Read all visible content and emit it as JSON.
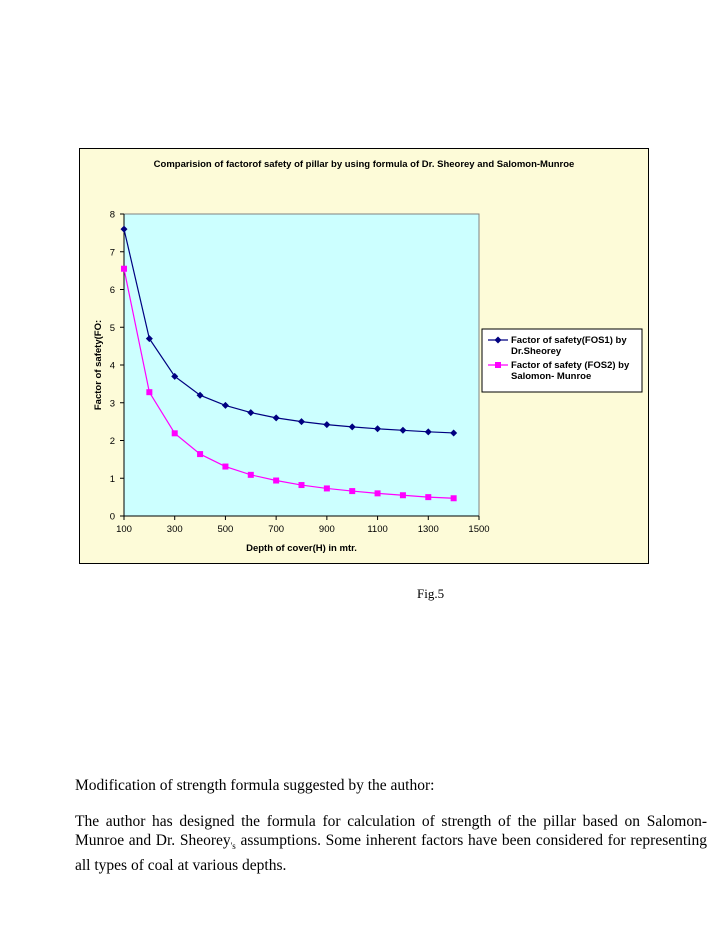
{
  "chart_data": {
    "type": "line",
    "title": "Comparision of factorof safety of pillar by using formula of Dr. Sheorey and Salomon-Munroe",
    "xlabel": "Depth of cover(H) in mtr.",
    "ylabel": "Factor of safety(FO:",
    "xlim": [
      100,
      1500
    ],
    "ylim": [
      0,
      8
    ],
    "x_ticks": [
      "100",
      "300",
      "500",
      "700",
      "900",
      "1100",
      "1300",
      "1500"
    ],
    "y_ticks": [
      "0",
      "1",
      "2",
      "3",
      "4",
      "5",
      "6",
      "7",
      "8"
    ],
    "grid": false,
    "legend_position": "right",
    "plot_background": "#ccffff",
    "chart_background": "#fdfbd8",
    "x": [
      100,
      200,
      300,
      400,
      500,
      600,
      700,
      800,
      900,
      1000,
      1100,
      1200,
      1300,
      1400
    ],
    "series": [
      {
        "name": "Factor of safety(FOS1) by Dr.Sheorey",
        "legend_lines": [
          "Factor of safety(FOS1) by",
          "Dr.Sheorey"
        ],
        "color": "#000080",
        "marker": "diamond",
        "values": [
          7.6,
          4.7,
          3.7,
          3.2,
          2.93,
          2.74,
          2.6,
          2.5,
          2.42,
          2.36,
          2.31,
          2.27,
          2.23,
          2.2
        ]
      },
      {
        "name": "Factor of safety (FOS2) by Salomon- Munroe",
        "legend_lines": [
          "Factor of safety (FOS2) by",
          "Salomon- Munroe"
        ],
        "color": "#ff00ff",
        "marker": "square",
        "values": [
          6.55,
          3.28,
          2.19,
          1.64,
          1.31,
          1.09,
          0.94,
          0.82,
          0.73,
          0.66,
          0.6,
          0.55,
          0.5,
          0.47
        ]
      }
    ]
  },
  "caption": "Fig.5",
  "document": {
    "heading": "Modification of strength formula suggested by the author:",
    "paragraph_before": "The author has designed the formula for calculation of strength of the pillar based on Salomon- Munroe and Dr. Sheorey",
    "paragraph_sub": "'s",
    "paragraph_after": " assumptions. Some inherent factors have been considered for representing all types of coal at various depths."
  }
}
